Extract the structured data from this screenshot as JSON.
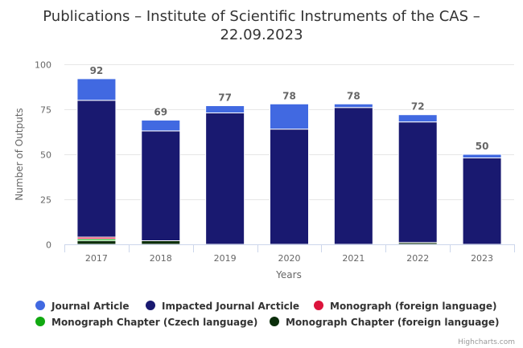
{
  "chart_data": {
    "type": "bar",
    "stacked": true,
    "title_line1": "Publications – Institute of Scientific Instruments of the CAS –",
    "title_line2": "22.09.2023",
    "categories": [
      "2017",
      "2018",
      "2019",
      "2020",
      "2021",
      "2022",
      "2023"
    ],
    "xlabel": "Years",
    "ylabel": "Number of Outputs",
    "ylim": [
      0,
      100
    ],
    "yticks": [
      "0",
      "25",
      "50",
      "75",
      "100"
    ],
    "series": [
      {
        "name": "Journal Article",
        "color": "#4169E1",
        "values": [
          12,
          6,
          4,
          14,
          2,
          4,
          2
        ]
      },
      {
        "name": "Impacted Journal Arcticle",
        "color": "#191970",
        "values": [
          76,
          61,
          73,
          64,
          76,
          67,
          48
        ]
      },
      {
        "name": "Monograph (foreign language)",
        "color": "#DC143C",
        "values": [
          1,
          0,
          0,
          0,
          0,
          0,
          0
        ]
      },
      {
        "name": "Monograph Chapter (Czech language)",
        "color": "#11A911",
        "values": [
          1,
          0,
          0,
          0,
          0,
          0,
          0
        ]
      },
      {
        "name": "Monograph Chapter (foreign language)",
        "color": "#0B2E0B",
        "values": [
          2,
          2,
          0,
          0,
          0,
          1,
          0
        ]
      }
    ],
    "totals": [
      "92",
      "69",
      "77",
      "78",
      "78",
      "72",
      "50"
    ],
    "grid": true,
    "legend_position": "bottom",
    "credits": "Highcharts.com"
  }
}
